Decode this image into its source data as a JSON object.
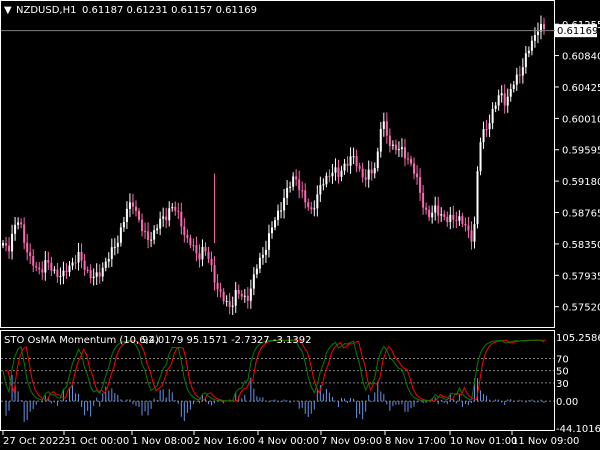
{
  "header": {
    "menu_glyph": "▼",
    "symbol_timeframe": "NZDUSD,H1",
    "ohlc": "0.61187 0.61231 0.61157 0.61169"
  },
  "price_axis": {
    "labels": [
      "0.61255",
      "0.60840",
      "0.60425",
      "0.60010",
      "0.59595",
      "0.59180",
      "0.58765",
      "0.58350",
      "0.57935",
      "0.57520"
    ],
    "current_price": "0.61169"
  },
  "indicator": {
    "title": "STO OsMA Momentum (10,6,4)",
    "values": "92.0179 95.1571 -2.7327 -3.1392",
    "axis_labels": [
      "105.2586",
      "70",
      "50",
      "30",
      "0.00",
      "-44.1016"
    ]
  },
  "time_axis": {
    "labels": [
      "27 Oct 2022",
      "31 Oct 00:00",
      "1 Nov 08:00",
      "2 Nov 16:00",
      "4 Nov 00:00",
      "7 Nov 09:00",
      "8 Nov 17:00",
      "10 Nov 01:00",
      "11 Nov 09:00"
    ]
  },
  "colors": {
    "background": "#000000",
    "bull_candle": "#ffffff",
    "bear_candle": "#ff69b4",
    "current_price_line": "#808080",
    "stoch_main": "#008000",
    "stoch_signal": "#ff0000",
    "histogram": "#6495ed",
    "level_lines": "#808080"
  },
  "chart_data": {
    "type": "candlestick",
    "symbol": "NZDUSD",
    "timeframe": "H1",
    "close_path": [
      0.5836,
      0.5829,
      0.5852,
      0.587,
      0.5838,
      0.5812,
      0.5805,
      0.58,
      0.581,
      0.5803,
      0.5796,
      0.579,
      0.5805,
      0.5812,
      0.5818,
      0.5806,
      0.5795,
      0.5788,
      0.5798,
      0.5812,
      0.5822,
      0.5836,
      0.586,
      0.588,
      0.5891,
      0.587,
      0.5846,
      0.5842,
      0.5851,
      0.5864,
      0.5871,
      0.5885,
      0.5878,
      0.5862,
      0.584,
      0.5832,
      0.5818,
      0.583,
      0.5815,
      0.5792,
      0.577,
      0.5758,
      0.5752,
      0.577,
      0.5766,
      0.5762,
      0.578,
      0.5806,
      0.5822,
      0.584,
      0.5862,
      0.588,
      0.5895,
      0.5912,
      0.5928,
      0.5904,
      0.5888,
      0.588,
      0.5895,
      0.5915,
      0.5926,
      0.5932,
      0.5925,
      0.594,
      0.5945,
      0.5948,
      0.5932,
      0.592,
      0.593,
      0.594,
      0.6001,
      0.5975,
      0.5965,
      0.596,
      0.5955,
      0.5948,
      0.593,
      0.5905,
      0.588,
      0.587,
      0.5882,
      0.5875,
      0.5865,
      0.5868,
      0.5872,
      0.5862,
      0.585,
      0.5842,
      0.5965,
      0.5985,
      0.6,
      0.6018,
      0.6035,
      0.6022,
      0.604,
      0.6055,
      0.607,
      0.6088,
      0.6105,
      0.6125,
      0.6117
    ],
    "y_range": [
      0.5745,
      0.6131
    ],
    "oscillator": {
      "name": "STO OsMA Momentum",
      "params": [
        10,
        6,
        4
      ],
      "levels": [
        70,
        50,
        30,
        0
      ],
      "y_range": [
        -44.1016,
        105.2586
      ]
    }
  }
}
